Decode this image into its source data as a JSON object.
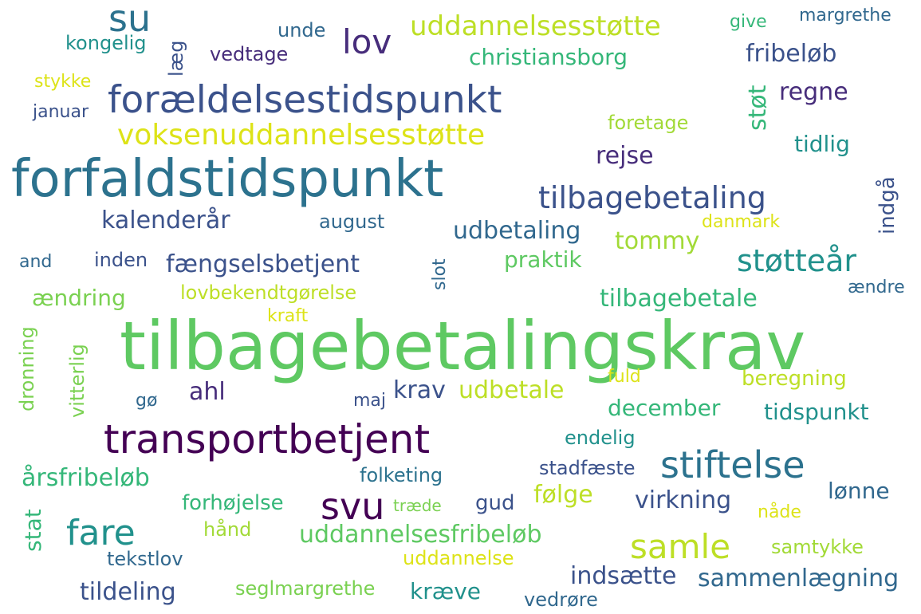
{
  "word_cloud": {
    "words": [
      {
        "text": "tilbagebetalingskrav",
        "color": "#5ec962"
      },
      {
        "text": "forfaldstidspunkt",
        "color": "#2c728e"
      },
      {
        "text": "transportbetjent",
        "color": "#440154"
      },
      {
        "text": "forældelsestidspunkt",
        "color": "#3b528b"
      },
      {
        "text": "voksenuddannelsesstøtte",
        "color": "#dde318"
      },
      {
        "text": "tilbagebetaling",
        "color": "#3b528b"
      },
      {
        "text": "stiftelse",
        "color": "#2c728e"
      },
      {
        "text": "su",
        "color": "#2c728e"
      },
      {
        "text": "lov",
        "color": "#472d7b"
      },
      {
        "text": "uddannelsesstøtte",
        "color": "#bddf26"
      },
      {
        "text": "christiansborg",
        "color": "#35b779"
      },
      {
        "text": "fribeløb",
        "color": "#3b528b"
      },
      {
        "text": "regne",
        "color": "#472d7b"
      },
      {
        "text": "støt",
        "color": "#35b779"
      },
      {
        "text": "tidlig",
        "color": "#21918c"
      },
      {
        "text": "foretage",
        "color": "#a2da37"
      },
      {
        "text": "rejse",
        "color": "#472d7b"
      },
      {
        "text": "indgå",
        "color": "#3b528b"
      },
      {
        "text": "danmark",
        "color": "#dde318"
      },
      {
        "text": "støtteår",
        "color": "#21918c"
      },
      {
        "text": "tilbagebetale",
        "color": "#35b779"
      },
      {
        "text": "ændre",
        "color": "#31688e"
      },
      {
        "text": "kalenderår",
        "color": "#3b528b"
      },
      {
        "text": "august",
        "color": "#31688e"
      },
      {
        "text": "udbetaling",
        "color": "#31688e"
      },
      {
        "text": "tommy",
        "color": "#a2da37"
      },
      {
        "text": "praktik",
        "color": "#5ec962"
      },
      {
        "text": "fængselsbetjent",
        "color": "#3b528b"
      },
      {
        "text": "slot",
        "color": "#31688e"
      },
      {
        "text": "lovbekendtgørelse",
        "color": "#bddf26"
      },
      {
        "text": "and",
        "color": "#31688e"
      },
      {
        "text": "inden",
        "color": "#3b528b"
      },
      {
        "text": "ændring",
        "color": "#7ad151"
      },
      {
        "text": "kraft",
        "color": "#dde318"
      },
      {
        "text": "dronning",
        "color": "#7ad151"
      },
      {
        "text": "vitterlig",
        "color": "#7ad151"
      },
      {
        "text": "ahl",
        "color": "#472d7b"
      },
      {
        "text": "krav",
        "color": "#3b528b"
      },
      {
        "text": "udbetale",
        "color": "#bddf26"
      },
      {
        "text": "fuld",
        "color": "#dde318"
      },
      {
        "text": "beregning",
        "color": "#bddf26"
      },
      {
        "text": "december",
        "color": "#35b779"
      },
      {
        "text": "tidspunkt",
        "color": "#21918c"
      },
      {
        "text": "gø",
        "color": "#31688e"
      },
      {
        "text": "maj",
        "color": "#3b528b"
      },
      {
        "text": "endelig",
        "color": "#21918c"
      },
      {
        "text": "årsfribeløb",
        "color": "#35b779"
      },
      {
        "text": "folketing",
        "color": "#2c728e"
      },
      {
        "text": "stadfæste",
        "color": "#3b528b"
      },
      {
        "text": "svu",
        "color": "#440154"
      },
      {
        "text": "følge",
        "color": "#bddf26"
      },
      {
        "text": "virkning",
        "color": "#3b528b"
      },
      {
        "text": "lønne",
        "color": "#31688e"
      },
      {
        "text": "nåde",
        "color": "#dde318"
      },
      {
        "text": "fare",
        "color": "#21918c"
      },
      {
        "text": "forhøjelse",
        "color": "#35b779"
      },
      {
        "text": "træde",
        "color": "#7ad151"
      },
      {
        "text": "gud",
        "color": "#3b528b"
      },
      {
        "text": "stat",
        "color": "#35b779"
      },
      {
        "text": "hånd",
        "color": "#a2da37"
      },
      {
        "text": "uddannelsesfribeløb",
        "color": "#5ec962"
      },
      {
        "text": "samle",
        "color": "#bddf26"
      },
      {
        "text": "samtykke",
        "color": "#a2da37"
      },
      {
        "text": "tekstlov",
        "color": "#31688e"
      },
      {
        "text": "uddannelse",
        "color": "#dde318"
      },
      {
        "text": "indsætte",
        "color": "#3b528b"
      },
      {
        "text": "sammenlægning",
        "color": "#31688e"
      },
      {
        "text": "tildeling",
        "color": "#3b528b"
      },
      {
        "text": "seglmargrethe",
        "color": "#7ad151"
      },
      {
        "text": "kræve",
        "color": "#21918c"
      },
      {
        "text": "vedrøre",
        "color": "#31688e"
      },
      {
        "text": "kongelig",
        "color": "#21918c"
      },
      {
        "text": "læg",
        "color": "#3b528b"
      },
      {
        "text": "unde",
        "color": "#31688e"
      },
      {
        "text": "vedtage",
        "color": "#472d7b"
      },
      {
        "text": "stykke",
        "color": "#dde318"
      },
      {
        "text": "januar",
        "color": "#3b528b"
      },
      {
        "text": "give",
        "color": "#35b779"
      },
      {
        "text": "margrethe",
        "color": "#31688e"
      }
    ]
  }
}
